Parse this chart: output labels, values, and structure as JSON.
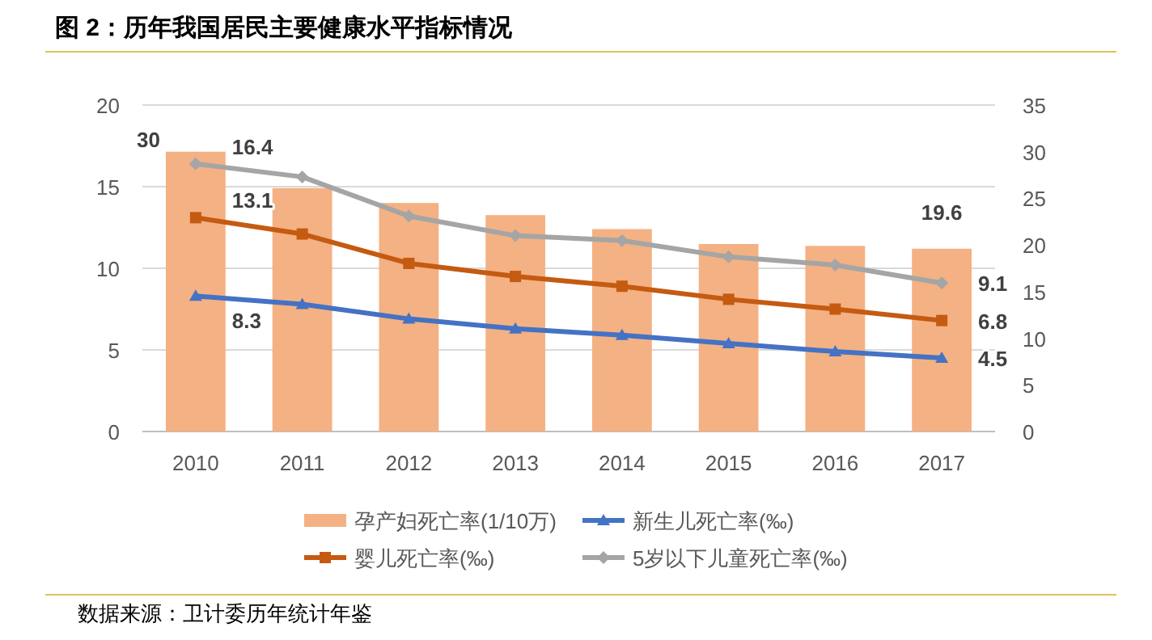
{
  "chart_data": {
    "type": "bar",
    "title": "图 2：历年我国居民主要健康水平指标情况",
    "categories": [
      "2010",
      "2011",
      "2012",
      "2013",
      "2014",
      "2015",
      "2016",
      "2017"
    ],
    "series": [
      {
        "name": "孕产妇死亡率(1/10万)",
        "axis": "y2",
        "color": "#f4b183",
        "values": [
          30,
          26.1,
          24.5,
          23.2,
          21.7,
          20.1,
          19.9,
          19.6
        ],
        "value_labels": [
          "30",
          null,
          null,
          null,
          null,
          null,
          null,
          "19.6"
        ]
      },
      {
        "name": "新生儿死亡率(‰)",
        "type": "line",
        "marker": "triangle",
        "color": "#4472c4",
        "values": [
          8.3,
          7.8,
          6.9,
          6.3,
          5.9,
          5.4,
          4.9,
          4.5
        ],
        "value_labels": [
          "8.3",
          null,
          null,
          null,
          null,
          null,
          null,
          "4.5"
        ]
      },
      {
        "name": "婴儿死亡率(‰)",
        "type": "line",
        "marker": "square",
        "color": "#c55a11",
        "values": [
          13.1,
          12.1,
          10.3,
          9.5,
          8.9,
          8.1,
          7.5,
          6.8
        ],
        "value_labels": [
          "13.1",
          null,
          null,
          null,
          null,
          null,
          null,
          "6.8"
        ]
      },
      {
        "name": "5岁以下儿童死亡率(‰)",
        "type": "line",
        "marker": "diamond",
        "color": "#a5a5a5",
        "values": [
          16.4,
          15.6,
          13.2,
          12.0,
          11.7,
          10.7,
          10.2,
          9.1
        ],
        "value_labels": [
          "16.4",
          null,
          null,
          null,
          null,
          null,
          null,
          "9.1"
        ]
      }
    ],
    "ylim": [
      0,
      20
    ],
    "yticks": [
      0,
      5,
      10,
      15,
      20
    ],
    "y2lim": [
      0,
      35
    ],
    "y2ticks": [
      0,
      5,
      10,
      15,
      20,
      25,
      30,
      35
    ],
    "grid": "y",
    "legend": "bottom",
    "annotations": [
      "数据来源：卫计委历年统计年鉴"
    ]
  }
}
